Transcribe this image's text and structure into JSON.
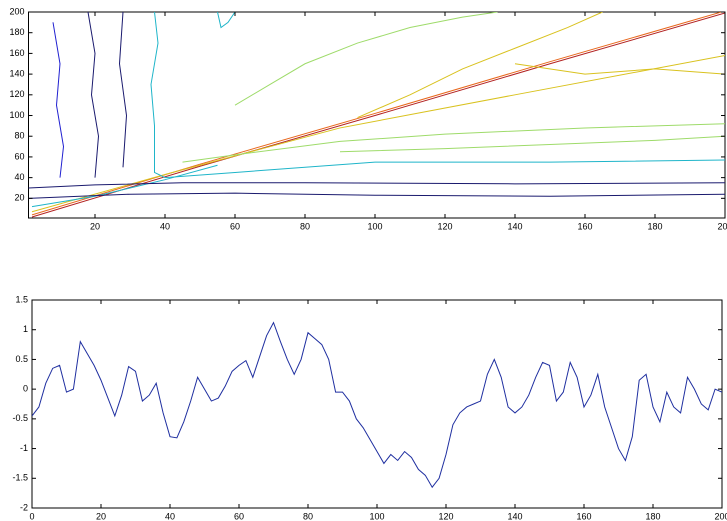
{
  "chart_data": [
    {
      "type": "contour",
      "xlim": [
        1,
        200
      ],
      "ylim": [
        1,
        200
      ],
      "xticks": [
        20,
        40,
        60,
        80,
        100,
        120,
        140,
        160,
        180,
        200
      ],
      "yticks": [
        20,
        40,
        60,
        80,
        100,
        120,
        140,
        160,
        180,
        200
      ],
      "series": [
        {
          "color": "#b22222",
          "x": [
            2,
            50,
            100,
            150,
            200
          ],
          "y": [
            2,
            51,
            100,
            150,
            199
          ]
        },
        {
          "color": "#e8671c",
          "x": [
            2,
            50,
            100,
            150,
            200
          ],
          "y": [
            4,
            53,
            102,
            152,
            201
          ]
        },
        {
          "color": "#d9c21f",
          "x": [
            2,
            40,
            90,
            140,
            200
          ],
          "y": [
            7,
            43,
            88,
            120,
            158
          ]
        },
        {
          "color": "#d9c21f",
          "x": [
            95,
            110,
            125,
            140,
            155,
            165
          ],
          "y": [
            98,
            120,
            145,
            165,
            185,
            200
          ]
        },
        {
          "color": "#d9c21f",
          "x": [
            140,
            160,
            180,
            200
          ],
          "y": [
            150,
            140,
            145,
            140
          ]
        },
        {
          "color": "#1fb5c9",
          "x": [
            37,
            38,
            36,
            37,
            37,
            40,
            60,
            100,
            150,
            200
          ],
          "y": [
            200,
            170,
            130,
            90,
            45,
            40,
            45,
            55,
            55,
            57
          ]
        },
        {
          "color": "#1fb5c9",
          "x": [
            2,
            20,
            40,
            55
          ],
          "y": [
            12,
            22,
            38,
            52
          ]
        },
        {
          "color": "#1fb5c9",
          "x": [
            55,
            56,
            58,
            60
          ],
          "y": [
            200,
            185,
            190,
            200
          ]
        },
        {
          "color": "#9edb6a",
          "x": [
            45,
            60,
            90,
            120,
            160,
            200
          ],
          "y": [
            55,
            62,
            75,
            82,
            88,
            92
          ]
        },
        {
          "color": "#9edb6a",
          "x": [
            60,
            70,
            80,
            95,
            110,
            125,
            135
          ],
          "y": [
            110,
            130,
            150,
            170,
            185,
            195,
            200
          ]
        },
        {
          "color": "#9edb6a",
          "x": [
            90,
            120,
            150,
            180,
            200
          ],
          "y": [
            65,
            68,
            72,
            76,
            80
          ]
        },
        {
          "color": "#1a1a6e",
          "x": [
            1,
            20,
            45,
            80,
            140,
            200
          ],
          "y": [
            30,
            33,
            35,
            35,
            34,
            35
          ]
        },
        {
          "color": "#1a1a6e",
          "x": [
            1,
            30,
            60,
            100,
            150,
            200
          ],
          "y": [
            20,
            24,
            25,
            23,
            22,
            24
          ]
        },
        {
          "color": "#1a1a6e",
          "x": [
            18,
            20,
            19,
            21,
            20
          ],
          "y": [
            200,
            160,
            120,
            80,
            40
          ]
        },
        {
          "color": "#1a1a6e",
          "x": [
            28,
            27,
            29,
            28
          ],
          "y": [
            200,
            150,
            100,
            50
          ]
        },
        {
          "color": "#2020d0",
          "x": [
            8,
            10,
            9,
            11,
            10
          ],
          "y": [
            190,
            150,
            110,
            70,
            40
          ]
        }
      ]
    },
    {
      "type": "line",
      "xlim": [
        0,
        200
      ],
      "ylim": [
        -2,
        1.5
      ],
      "xticks": [
        0,
        20,
        40,
        60,
        80,
        100,
        120,
        140,
        160,
        180,
        200
      ],
      "yticks": [
        -2,
        -1.5,
        -1,
        -0.5,
        0,
        0.5,
        1,
        1.5
      ],
      "color": "#1f2fa0",
      "x": [
        0,
        2,
        4,
        6,
        8,
        10,
        12,
        14,
        16,
        18,
        20,
        22,
        24,
        26,
        28,
        30,
        32,
        34,
        36,
        38,
        40,
        42,
        44,
        46,
        48,
        50,
        52,
        54,
        56,
        58,
        60,
        62,
        64,
        66,
        68,
        70,
        72,
        74,
        76,
        78,
        80,
        82,
        84,
        86,
        88,
        90,
        92,
        94,
        96,
        98,
        100,
        102,
        104,
        106,
        108,
        110,
        112,
        114,
        116,
        118,
        120,
        122,
        124,
        126,
        128,
        130,
        132,
        134,
        136,
        138,
        140,
        142,
        144,
        146,
        148,
        150,
        152,
        154,
        156,
        158,
        160,
        162,
        164,
        166,
        168,
        170,
        172,
        174,
        176,
        178,
        180,
        182,
        184,
        186,
        188,
        190,
        192,
        194,
        196,
        198,
        200
      ],
      "values": [
        -0.45,
        -0.3,
        0.1,
        0.35,
        0.4,
        -0.05,
        0.0,
        0.8,
        0.6,
        0.4,
        0.15,
        -0.15,
        -0.45,
        -0.1,
        0.38,
        0.3,
        -0.2,
        -0.1,
        0.1,
        -0.4,
        -0.8,
        -0.82,
        -0.55,
        -0.2,
        0.2,
        0.0,
        -0.2,
        -0.15,
        0.05,
        0.3,
        0.4,
        0.48,
        0.2,
        0.55,
        0.9,
        1.12,
        0.8,
        0.5,
        0.25,
        0.5,
        0.95,
        0.85,
        0.75,
        0.5,
        -0.05,
        -0.05,
        -0.2,
        -0.5,
        -0.65,
        -0.85,
        -1.05,
        -1.25,
        -1.1,
        -1.2,
        -1.05,
        -1.15,
        -1.35,
        -1.45,
        -1.65,
        -1.5,
        -1.1,
        -0.6,
        -0.4,
        -0.3,
        -0.25,
        -0.2,
        0.25,
        0.5,
        0.2,
        -0.3,
        -0.4,
        -0.3,
        -0.1,
        0.2,
        0.45,
        0.4,
        -0.2,
        -0.05,
        0.45,
        0.2,
        -0.3,
        -0.1,
        0.25,
        -0.3,
        -0.65,
        -1.0,
        -1.2,
        -0.8,
        0.15,
        0.25,
        -0.3,
        -0.55,
        -0.05,
        -0.3,
        -0.4,
        0.2,
        0.0,
        -0.25,
        -0.35,
        0.0,
        -0.05
      ]
    }
  ]
}
